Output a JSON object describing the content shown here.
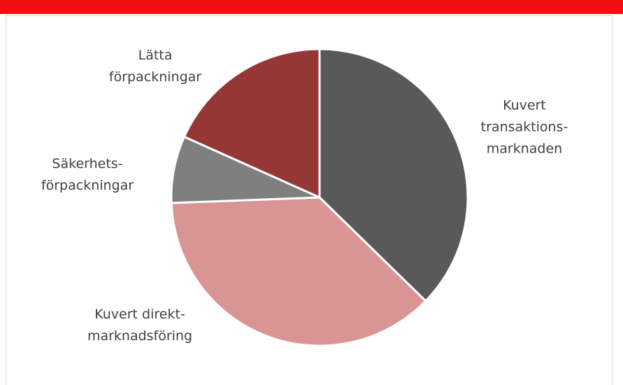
{
  "chart_data": {
    "type": "pie",
    "categories": [
      "Kuvert\ntransaktions-\nmarknaden",
      "Kuvert direkt-\nmarknadsföring",
      "Säkerhets-\nförpackningar",
      "Lätta\nförpackningar"
    ],
    "values": [
      37.3,
      37.1,
      7.3,
      18.3
    ],
    "colors": [
      "#595959",
      "#d99594",
      "#7f7f7f",
      "#953735"
    ],
    "start_angle": 0,
    "direction": "clockwise"
  }
}
